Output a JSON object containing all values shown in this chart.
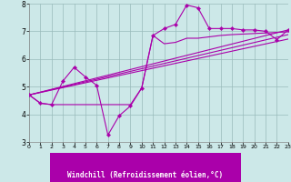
{
  "xlabel": "Windchill (Refroidissement éolien,°C)",
  "background_color": "#cce8e8",
  "line_color": "#aa00aa",
  "grid_color": "#99bbbb",
  "xlim": [
    0,
    23
  ],
  "ylim": [
    3,
    8
  ],
  "yticks": [
    3,
    4,
    5,
    6,
    7,
    8
  ],
  "xticks": [
    0,
    1,
    2,
    3,
    4,
    5,
    6,
    7,
    8,
    9,
    10,
    11,
    12,
    13,
    14,
    15,
    16,
    17,
    18,
    19,
    20,
    21,
    22,
    23
  ],
  "line1_x": [
    0,
    1,
    2,
    3,
    4,
    5,
    6,
    7,
    8,
    9,
    10,
    11,
    12,
    13,
    14,
    15,
    16,
    17,
    18,
    19,
    20,
    21,
    22,
    23
  ],
  "line1_y": [
    4.7,
    4.4,
    4.35,
    5.2,
    5.7,
    5.35,
    5.05,
    3.25,
    3.95,
    4.3,
    4.95,
    6.85,
    7.1,
    7.25,
    7.95,
    7.85,
    7.1,
    7.1,
    7.1,
    7.05,
    7.05,
    7.0,
    6.7,
    7.05
  ],
  "line2_x": [
    0,
    1,
    2,
    3,
    4,
    5,
    6,
    7,
    8,
    9,
    10,
    11,
    12,
    13,
    14,
    15,
    16,
    17,
    18,
    19,
    20,
    21,
    22,
    23
  ],
  "line2_y": [
    4.7,
    4.4,
    4.35,
    4.35,
    4.35,
    4.35,
    4.35,
    4.35,
    4.35,
    4.35,
    4.95,
    6.85,
    6.55,
    6.6,
    6.75,
    6.75,
    6.8,
    6.85,
    6.88,
    6.9,
    6.92,
    6.94,
    6.96,
    6.98
  ],
  "trend1_x": [
    0,
    23
  ],
  "trend1_y": [
    4.7,
    7.05
  ],
  "trend2_x": [
    0,
    23
  ],
  "trend2_y": [
    4.7,
    6.88
  ],
  "trend3_x": [
    0,
    23
  ],
  "trend3_y": [
    4.7,
    6.72
  ],
  "xlabel_bg_color": "#aa00aa",
  "xlabel_fg_color": "#ffffff",
  "xlabel_fontsize": 5.5
}
